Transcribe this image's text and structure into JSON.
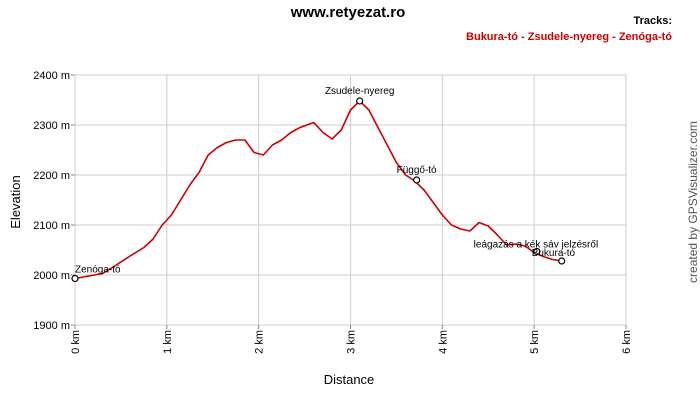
{
  "chart_data": {
    "type": "line",
    "title": "www.retyezat.ro",
    "legend_title": "Tracks:",
    "legend_position": "top-right",
    "xlabel": "Distance",
    "ylabel": "Elevation",
    "credit": "created by GPSVisualizer.com",
    "xlim": [
      0,
      6
    ],
    "ylim": [
      1900,
      2400
    ],
    "grid": true,
    "x_ticks": [
      {
        "value": 0,
        "label": "0 km"
      },
      {
        "value": 1,
        "label": "1 km"
      },
      {
        "value": 2,
        "label": "2 km"
      },
      {
        "value": 3,
        "label": "3 km"
      },
      {
        "value": 4,
        "label": "4 km"
      },
      {
        "value": 5,
        "label": "5 km"
      },
      {
        "value": 6,
        "label": "6 km"
      }
    ],
    "y_ticks": [
      {
        "value": 1900,
        "label": "1900 m"
      },
      {
        "value": 2000,
        "label": "2000 m"
      },
      {
        "value": 2100,
        "label": "2100 m"
      },
      {
        "value": 2200,
        "label": "2200 m"
      },
      {
        "value": 2300,
        "label": "2300 m"
      },
      {
        "value": 2400,
        "label": "2400 m"
      }
    ],
    "series": [
      {
        "name": "Bukura-tó - Zsudele-nyereg - Zenóga-tó",
        "color": "#cc0000",
        "x": [
          0,
          0.15,
          0.3,
          0.45,
          0.6,
          0.75,
          0.85,
          0.95,
          1.05,
          1.15,
          1.25,
          1.35,
          1.45,
          1.55,
          1.65,
          1.75,
          1.85,
          1.95,
          2.05,
          2.15,
          2.25,
          2.35,
          2.45,
          2.6,
          2.7,
          2.8,
          2.9,
          3.0,
          3.1,
          3.2,
          3.3,
          3.4,
          3.5,
          3.6,
          3.7,
          3.8,
          3.9,
          4.0,
          4.1,
          4.2,
          4.3,
          4.4,
          4.5,
          4.6,
          4.7,
          4.8,
          4.9,
          5.0,
          5.1,
          5.2,
          5.3
        ],
        "y": [
          1993,
          1998,
          2003,
          2020,
          2038,
          2055,
          2072,
          2100,
          2120,
          2150,
          2180,
          2205,
          2240,
          2255,
          2265,
          2270,
          2270,
          2245,
          2240,
          2260,
          2270,
          2285,
          2295,
          2305,
          2285,
          2272,
          2290,
          2330,
          2348,
          2330,
          2295,
          2260,
          2225,
          2200,
          2188,
          2170,
          2145,
          2120,
          2100,
          2092,
          2088,
          2105,
          2098,
          2080,
          2060,
          2062,
          2058,
          2045,
          2037,
          2031,
          2028
        ]
      }
    ],
    "waypoints": [
      {
        "name": "Zenóga-tó",
        "x": 0,
        "y": 1993
      },
      {
        "name": "Zsudele-nyereg",
        "x": 3.1,
        "y": 2348
      },
      {
        "name": "Függő-tó",
        "x": 3.72,
        "y": 2190
      },
      {
        "name": "leágazás a kék sáv jelzésről",
        "x": 5.03,
        "y": 2047
      },
      {
        "name": "Bukura-tó",
        "x": 5.3,
        "y": 2028
      }
    ]
  }
}
